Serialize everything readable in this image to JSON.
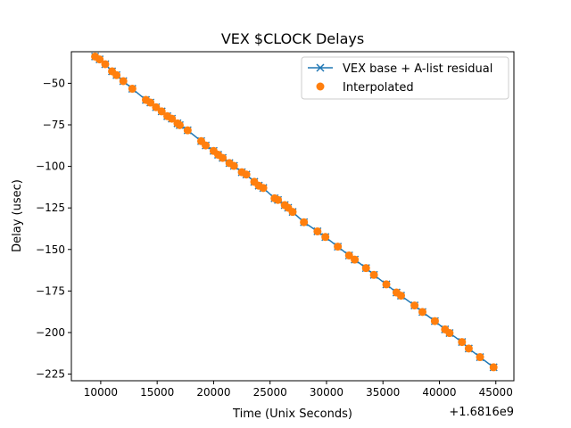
{
  "chart_data": {
    "type": "line",
    "title": "VEX $CLOCK Delays",
    "xlabel": "Time (Unix Seconds)",
    "ylabel": "Delay (usec)",
    "x_offset_label": "+1.6816e9",
    "xlim": [
      7400,
      46600
    ],
    "ylim": [
      -229,
      -31
    ],
    "x_ticks": [
      10000,
      15000,
      20000,
      25000,
      30000,
      35000,
      40000,
      45000
    ],
    "y_ticks": [
      -50,
      -75,
      -100,
      -125,
      -150,
      -175,
      -200,
      -225
    ],
    "grid": false,
    "legend_position": "top-right",
    "colors": {
      "line": "#1f77b4",
      "points": "#ff7f0e"
    },
    "series": [
      {
        "name": "VEX base + A-list residual",
        "marker": "x",
        "style": "line",
        "x": [
          9500,
          9900,
          10400,
          11000,
          11400,
          12000,
          12800,
          14000,
          14400,
          14900,
          15400,
          15900,
          16300,
          16800,
          17000,
          17700,
          18900,
          19300,
          20000,
          20400,
          20800,
          21400,
          21800,
          22500,
          22900,
          23600,
          24000,
          24400,
          25400,
          25700,
          26300,
          26600,
          27000,
          28000,
          29200,
          29900,
          31000,
          32000,
          32500,
          33500,
          34200,
          35300,
          36200,
          36600,
          37800,
          38500,
          39600,
          40500,
          40900,
          42000,
          42600,
          43600,
          44800
        ],
        "y": [
          -33.9,
          -35.6,
          -38.5,
          -42.8,
          -45.1,
          -48.7,
          -53.3,
          -60.0,
          -61.6,
          -64.4,
          -66.9,
          -69.8,
          -71.3,
          -74.1,
          -75.2,
          -78.3,
          -84.8,
          -87.4,
          -90.7,
          -93.0,
          -94.9,
          -98.0,
          -99.7,
          -103.5,
          -104.9,
          -109.3,
          -111.6,
          -113.0,
          -119.2,
          -120.2,
          -123.3,
          -124.9,
          -127.4,
          -133.6,
          -139.1,
          -142.5,
          -148.3,
          -153.6,
          -156.1,
          -161.2,
          -165.3,
          -171.0,
          -175.9,
          -177.8,
          -183.7,
          -187.6,
          -193.1,
          -198.1,
          -200.3,
          -205.7,
          -209.6,
          -214.8,
          -220.9
        ]
      },
      {
        "name": "Interpolated",
        "marker": "o",
        "style": "scatter",
        "x": [
          9500,
          9900,
          10400,
          11000,
          11400,
          12000,
          12800,
          14000,
          14400,
          14900,
          15400,
          15900,
          16300,
          16800,
          17000,
          17700,
          18900,
          19300,
          20000,
          20400,
          20800,
          21400,
          21800,
          22500,
          22900,
          23600,
          24000,
          24400,
          25400,
          25700,
          26300,
          26600,
          27000,
          28000,
          29200,
          29900,
          31000,
          32000,
          32500,
          33500,
          34200,
          35300,
          36200,
          36600,
          37800,
          38500,
          39600,
          40500,
          40900,
          42000,
          42600,
          43600,
          44800
        ],
        "y": [
          -33.9,
          -35.6,
          -38.5,
          -42.8,
          -45.1,
          -48.7,
          -53.3,
          -60.0,
          -61.6,
          -64.4,
          -66.9,
          -69.8,
          -71.3,
          -74.1,
          -75.2,
          -78.3,
          -84.8,
          -87.4,
          -90.7,
          -93.0,
          -94.9,
          -98.0,
          -99.7,
          -103.5,
          -104.9,
          -109.3,
          -111.6,
          -113.0,
          -119.2,
          -120.2,
          -123.3,
          -124.9,
          -127.4,
          -133.6,
          -139.1,
          -142.5,
          -148.3,
          -153.6,
          -156.1,
          -161.2,
          -165.3,
          -171.0,
          -175.9,
          -177.8,
          -183.7,
          -187.6,
          -193.1,
          -198.1,
          -200.3,
          -205.7,
          -209.6,
          -214.8,
          -220.9
        ]
      }
    ]
  }
}
